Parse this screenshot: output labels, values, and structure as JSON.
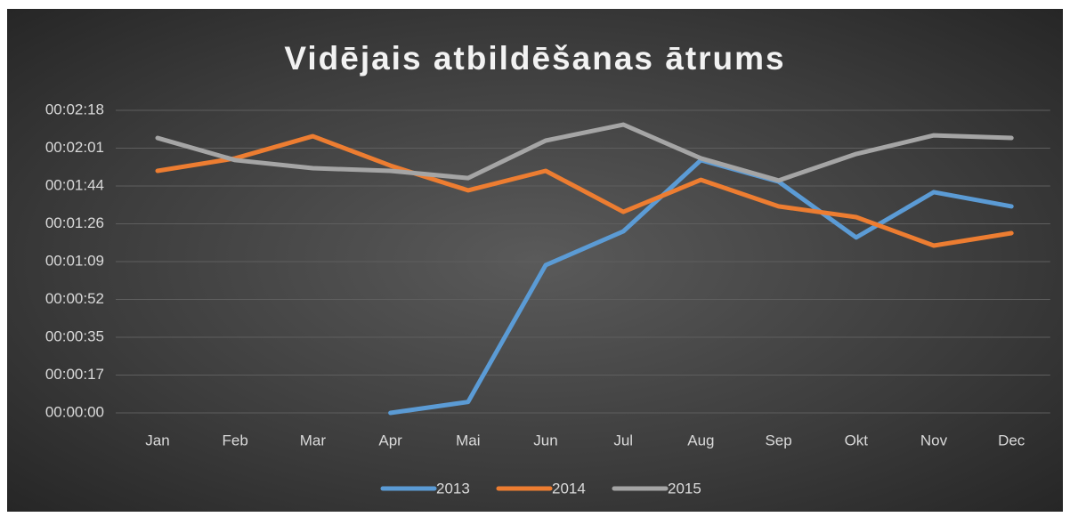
{
  "chart_data": {
    "type": "line",
    "title": "Vidējais atbildēšanas ātrums",
    "categories": [
      "Jan",
      "Feb",
      "Mar",
      "Apr",
      "Mai",
      "Jun",
      "Jul",
      "Aug",
      "Sep",
      "Okt",
      "Nov",
      "Dec"
    ],
    "series": [
      {
        "name": "2013",
        "color": "#5b9bd5",
        "values": [
          null,
          null,
          null,
          0,
          5,
          67.4,
          82.8,
          115.3,
          105.5,
          80,
          100.7,
          94.2
        ]
      },
      {
        "name": "2014",
        "color": "#ed7d31",
        "values": [
          110.4,
          116.1,
          126.2,
          112.8,
          101.5,
          110.4,
          91.7,
          106.3,
          94.2,
          89.3,
          76.3,
          82
        ]
      },
      {
        "name": "2015",
        "color": "#a5a5a5",
        "values": [
          125.4,
          115.3,
          111.6,
          110.4,
          107.1,
          124.2,
          131.5,
          116.1,
          106,
          118.1,
          126.6,
          125.4
        ]
      }
    ],
    "ylim": [
      0,
      138
    ],
    "yticks": [
      {
        "value": 0,
        "label": "00:00:00"
      },
      {
        "value": 17.25,
        "label": "00:00:17"
      },
      {
        "value": 34.5,
        "label": "00:00:35"
      },
      {
        "value": 51.75,
        "label": "00:00:52"
      },
      {
        "value": 69,
        "label": "00:01:09"
      },
      {
        "value": 86.25,
        "label": "00:01:26"
      },
      {
        "value": 103.5,
        "label": "00:01:44"
      },
      {
        "value": 120.75,
        "label": "00:02:01"
      },
      {
        "value": 138,
        "label": "00:02:18"
      }
    ],
    "grid": true,
    "legend": "bottom"
  }
}
